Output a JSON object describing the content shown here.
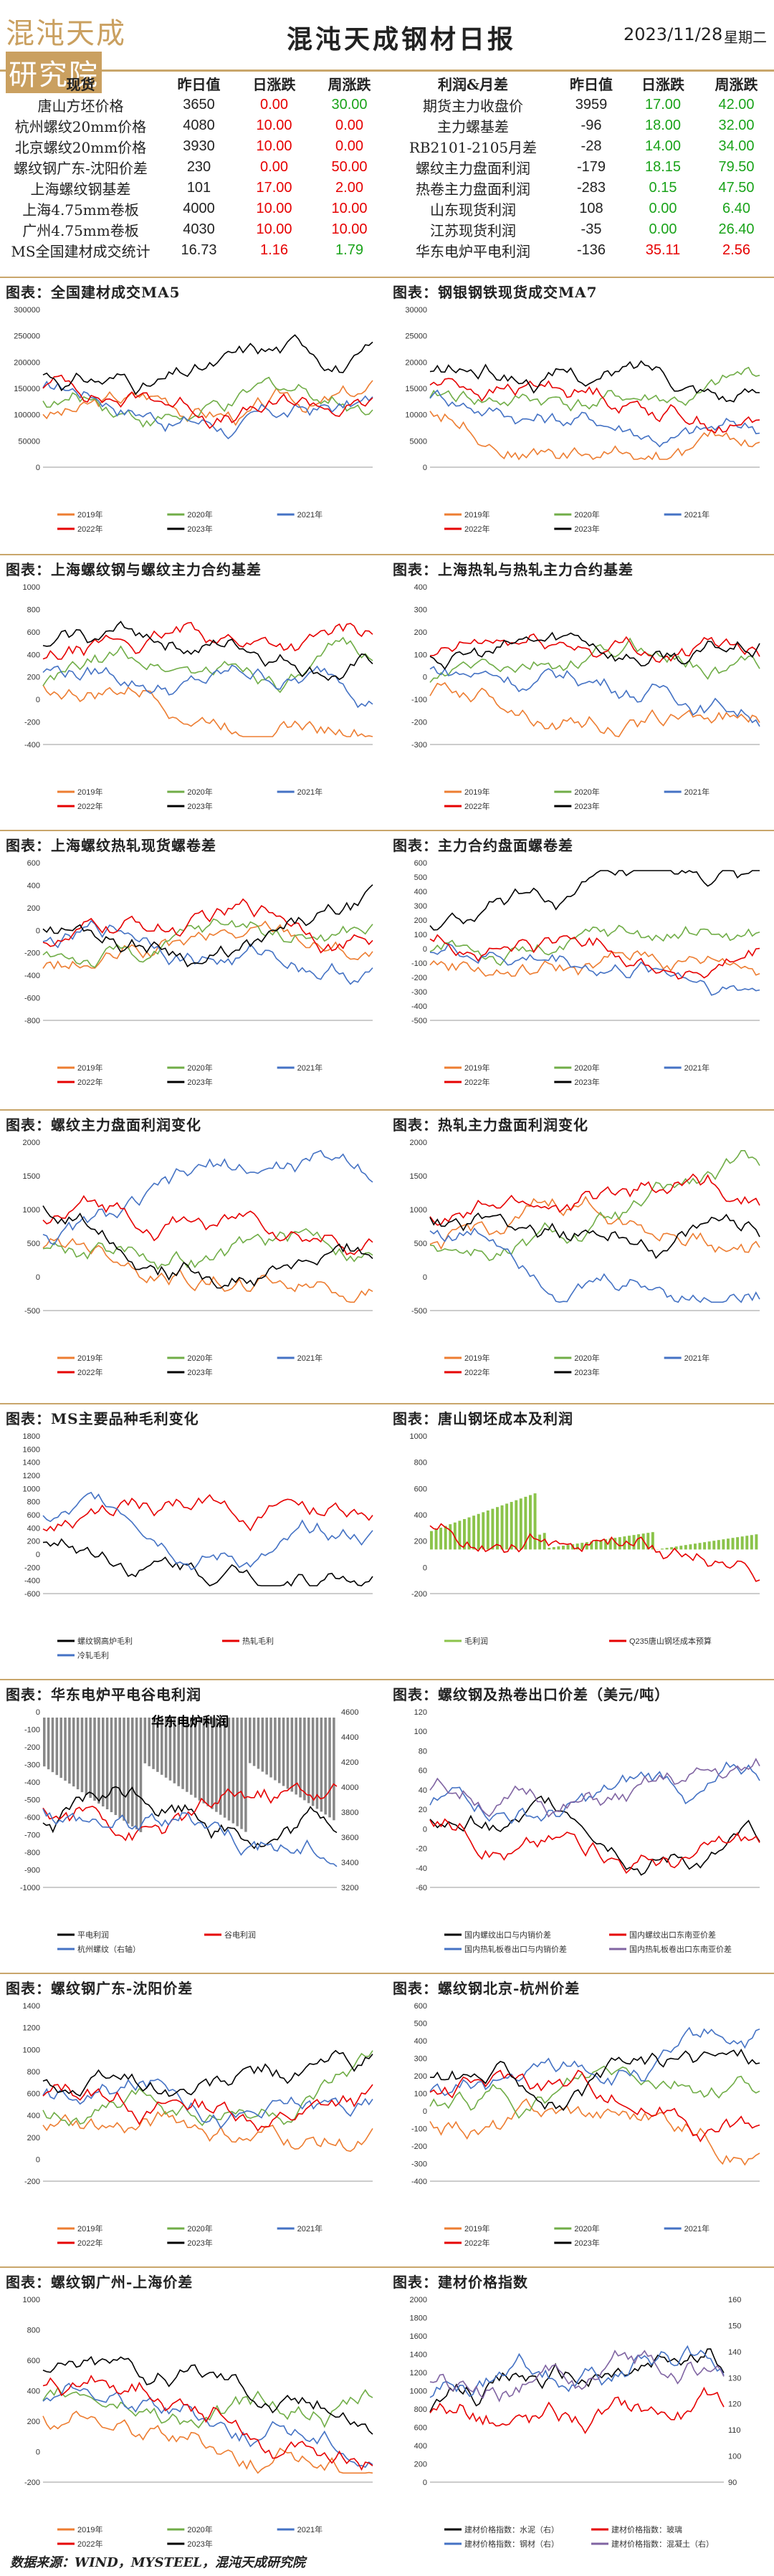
{
  "header": {
    "logo": "混沌天成",
    "logo_box": "研究院",
    "title": "混沌天成钢材日报",
    "date": "2023/11/28",
    "weekday": "星期二"
  },
  "table_left": {
    "headers": [
      "现货",
      "昨日值",
      "日涨跌",
      "周涨跌"
    ],
    "rows": [
      [
        "唐山方坯价格",
        "3650",
        "0.00",
        "30.00"
      ],
      [
        "杭州螺纹20mm价格",
        "4080",
        "10.00",
        "0.00"
      ],
      [
        "北京螺纹20mm价格",
        "3930",
        "10.00",
        "0.00"
      ],
      [
        "螺纹钢广东-沈阳价差",
        "230",
        "0.00",
        "50.00"
      ],
      [
        "上海螺纹钢基差",
        "101",
        "17.00",
        "2.00"
      ],
      [
        "上海4.75mm卷板",
        "4000",
        "10.00",
        "10.00"
      ],
      [
        "广州4.75mm卷板",
        "4030",
        "10.00",
        "10.00"
      ],
      [
        "MS全国建材成交统计",
        "16.73",
        "1.16",
        "1.79"
      ]
    ],
    "day_colors": [
      "red",
      "red",
      "red",
      "red",
      "red",
      "red",
      "red",
      "red"
    ],
    "week_colors": [
      "green",
      "red",
      "red",
      "red",
      "red",
      "red",
      "red",
      "green"
    ]
  },
  "table_right": {
    "headers": [
      "利润&月差",
      "昨日值",
      "日涨跌",
      "周涨跌"
    ],
    "rows": [
      [
        "期货主力收盘价",
        "3959",
        "17.00",
        "42.00"
      ],
      [
        "主力螺基差",
        "-96",
        "18.00",
        "32.00"
      ],
      [
        "RB2101-2105月差",
        "-28",
        "14.00",
        "34.00"
      ],
      [
        "螺纹主力盘面利润",
        "-179",
        "18.15",
        "79.50"
      ],
      [
        "热卷主力盘面利润",
        "-283",
        "0.15",
        "47.50"
      ],
      [
        "山东现货利润",
        "108",
        "0.00",
        "6.40"
      ],
      [
        "江苏现货利润",
        "-35",
        "0.00",
        "26.40"
      ],
      [
        "华东电炉平电利润",
        "-136",
        "35.11",
        "2.56"
      ]
    ],
    "day_colors": [
      "green",
      "green",
      "green",
      "green",
      "green",
      "green",
      "green",
      "red"
    ],
    "week_colors": [
      "green",
      "green",
      "green",
      "green",
      "green",
      "green",
      "green",
      "red"
    ]
  },
  "charts": [
    {
      "title": "图表：全国建材成交MA5",
      "legend": [
        "2019年",
        "2020年",
        "2021年",
        "2022年",
        "2023年"
      ],
      "yticks": [
        "300000",
        "250000",
        "200000",
        "150000",
        "100000",
        "50000",
        "0"
      ]
    },
    {
      "title": "图表：钢银钢铁现货成交MA7",
      "legend": [
        "2019年",
        "2020年",
        "2021年",
        "2022年",
        "2023年"
      ],
      "yticks": [
        "30000",
        "25000",
        "20000",
        "15000",
        "10000",
        "5000",
        "0"
      ]
    },
    {
      "title": "图表：上海螺纹钢与螺纹主力合约基差",
      "legend": [
        "2019年",
        "2020年",
        "2021年",
        "2022年",
        "2023年"
      ],
      "yticks": [
        "1000",
        "800",
        "600",
        "400",
        "200",
        "0",
        "-200",
        "-400"
      ]
    },
    {
      "title": "图表：上海热轧与热轧主力合约基差",
      "legend": [
        "2019年",
        "2020年",
        "2021年",
        "2022年",
        "2023年"
      ],
      "yticks": [
        "400",
        "300",
        "200",
        "100",
        "0",
        "-100",
        "-200",
        "-300"
      ]
    },
    {
      "title": "图表：上海螺纹热轧现货螺卷差",
      "legend": [
        "2019年",
        "2020年",
        "2021年",
        "2022年",
        "2023年"
      ],
      "yticks": [
        "600",
        "400",
        "200",
        "0",
        "-200",
        "-400",
        "-600",
        "-800"
      ]
    },
    {
      "title": "图表：主力合约盘面螺卷差",
      "legend": [
        "2019年",
        "2020年",
        "2021年",
        "2022年",
        "2023年"
      ],
      "yticks": [
        "600",
        "500",
        "400",
        "300",
        "200",
        "100",
        "0",
        "-100",
        "-200",
        "-300",
        "-400",
        "-500"
      ]
    },
    {
      "title": "图表：螺纹主力盘面利润变化",
      "legend": [
        "2019年",
        "2020年",
        "2021年",
        "2022年",
        "2023年"
      ],
      "yticks": [
        "2000",
        "1500",
        "1000",
        "500",
        "0",
        "-500"
      ]
    },
    {
      "title": "图表：热轧主力盘面利润变化",
      "legend": [
        "2019年",
        "2020年",
        "2021年",
        "2022年",
        "2023年"
      ],
      "yticks": [
        "2000",
        "1500",
        "1000",
        "500",
        "0",
        "-500"
      ]
    },
    {
      "title": "图表：MS主要品种毛利变化",
      "legend": [
        "螺纹钢高炉毛利",
        "热轧毛利",
        "冷轧毛利"
      ],
      "yticks": [
        "1800",
        "1600",
        "1400",
        "1200",
        "1000",
        "800",
        "600",
        "400",
        "200",
        "0",
        "-200",
        "-400",
        "-600"
      ]
    },
    {
      "title": "图表：唐山钢坯成本及利润",
      "legend": [
        "毛利润",
        "Q235唐山钢坯成本预算"
      ],
      "yticks": [
        "1000",
        "800",
        "600",
        "400",
        "200",
        "0",
        "-200"
      ]
    },
    {
      "title": "图表：华东电炉平电谷电利润",
      "inner_title": "华东电炉利润",
      "legend": [
        "平电利润",
        "谷电利润",
        "杭州螺纹（右轴）"
      ],
      "yticks": [
        "0",
        "-100",
        "-200",
        "-300",
        "-400",
        "-500",
        "-600",
        "-700",
        "-800",
        "-900",
        "-1000"
      ],
      "yticks_right": [
        "4600",
        "4400",
        "4200",
        "4000",
        "3800",
        "3600",
        "3400",
        "3200"
      ]
    },
    {
      "title": "图表：螺纹钢及热卷出口价差（美元/吨）",
      "legend": [
        "国内螺纹出口与内销价差",
        "国内螺纹出口东南亚价差",
        "国内热轧板卷出口与内销价差",
        "国内热轧板卷出口东南亚价差"
      ],
      "yticks": [
        "120",
        "100",
        "80",
        "60",
        "40",
        "20",
        "0",
        "-20",
        "-40",
        "-60"
      ]
    },
    {
      "title": "图表：螺纹钢广东-沈阳价差",
      "legend": [
        "2019年",
        "2020年",
        "2021年",
        "2022年",
        "2023年"
      ],
      "yticks": [
        "1400",
        "1200",
        "1000",
        "800",
        "600",
        "400",
        "200",
        "0",
        "-200"
      ]
    },
    {
      "title": "图表：螺纹钢北京-杭州价差",
      "legend": [
        "2019年",
        "2020年",
        "2021年",
        "2022年",
        "2023年"
      ],
      "yticks": [
        "600",
        "500",
        "400",
        "300",
        "200",
        "100",
        "0",
        "-100",
        "-200",
        "-300",
        "-400"
      ]
    },
    {
      "title": "图表：螺纹钢广州-上海价差",
      "legend": [
        "2019年",
        "2020年",
        "2021年",
        "2022年",
        "2023年"
      ],
      "yticks": [
        "1000",
        "800",
        "600",
        "400",
        "200",
        "0",
        "-200"
      ]
    },
    {
      "title": "图表：建材价格指数",
      "legend": [
        "建材价格指数：水泥（右）",
        "建材价格指数：玻璃",
        "建材价格指数：钢材（右）",
        "建材价格指数：混凝土（右）"
      ],
      "yticks": [
        "2000",
        "1800",
        "1600",
        "1400",
        "1200",
        "1000",
        "800",
        "600",
        "400",
        "200",
        "0"
      ],
      "yticks_right": [
        "160",
        "150",
        "140",
        "130",
        "120",
        "110",
        "100",
        "90"
      ]
    }
  ],
  "footer": "数据来源：WIND，MYSTEEL，混沌天成研究院",
  "colors": {
    "2019": "#ed7d31",
    "2020": "#70ad47",
    "2021": "#4472c4",
    "2022": "#e60000",
    "2023": "#000000"
  }
}
